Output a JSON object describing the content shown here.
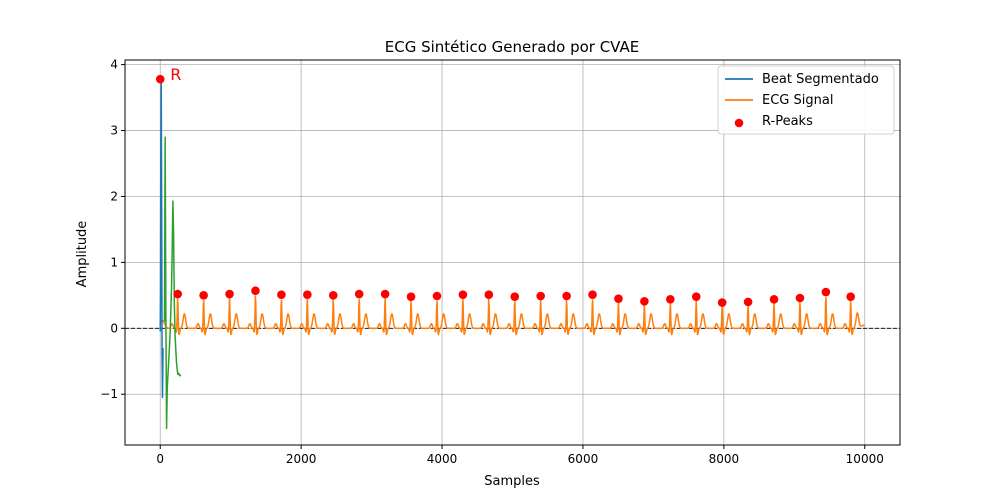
{
  "chart_data": {
    "type": "line",
    "title": "ECG Sintético Generado por CVAE",
    "xlabel": "Samples",
    "ylabel": "Amplitude",
    "xlim": [
      -500,
      10500
    ],
    "ylim": [
      -1.77,
      4.07
    ],
    "xticks": [
      0,
      2000,
      4000,
      6000,
      8000,
      10000
    ],
    "xtick_labels": [
      "0",
      "2000",
      "4000",
      "6000",
      "8000",
      "10000"
    ],
    "yticks": [
      -1,
      0,
      1,
      2,
      3,
      4
    ],
    "ytick_labels": [
      "−1",
      "0",
      "1",
      "2",
      "3",
      "4"
    ],
    "grid": true,
    "zero_line": true,
    "legend_position": "upper right",
    "legend": [
      "Beat Segmentado",
      "ECG Signal",
      "R-Peaks"
    ],
    "annotation": {
      "text": "R",
      "x": 0,
      "y": 3.78,
      "color": "#ff0000"
    },
    "colors": {
      "beat": "#1f77b4",
      "ecg": "#ff7f0e",
      "green": "#2ca02c",
      "peaks": "#ff0000"
    },
    "series": [
      {
        "name": "Beat Segmentado",
        "x": [
          0,
          4,
          8,
          14,
          20,
          26,
          32,
          40
        ],
        "y": [
          -0.05,
          0.6,
          2.6,
          3.78,
          2.0,
          -0.4,
          -1.05,
          -0.3
        ]
      },
      {
        "name": "ECG Signal",
        "beat_period": 368,
        "start": 0,
        "end": 10000,
        "amplitude_note": "periodic beats of ~0.5 amplitude"
      },
      {
        "x": [
          60,
          70,
          80,
          90,
          100,
          120,
          140,
          160,
          170,
          180,
          190,
          200,
          210,
          220,
          230,
          240,
          250,
          260,
          270,
          280,
          290
        ],
        "y": [
          0.1,
          2.9,
          0.2,
          -1.52,
          -0.9,
          -0.5,
          -0.1,
          0.6,
          1.2,
          1.93,
          1.4,
          0.4,
          -0.1,
          -0.3,
          -0.5,
          -0.62,
          -0.7,
          -0.68,
          -0.7,
          -0.72,
          -0.7
        ]
      },
      {
        "name": "R-Peaks",
        "x": [
          0,
          248,
          616,
          984,
          1352,
          1720,
          2088,
          2456,
          2824,
          3192,
          3560,
          3928,
          4296,
          4664,
          5032,
          5400,
          5768,
          6136,
          6504,
          6872,
          7240,
          7608,
          7976,
          8344,
          8712,
          9080,
          9448,
          9800
        ],
        "y": [
          3.78,
          0.52,
          0.5,
          0.52,
          0.57,
          0.51,
          0.51,
          0.5,
          0.52,
          0.52,
          0.48,
          0.49,
          0.51,
          0.51,
          0.48,
          0.49,
          0.49,
          0.51,
          0.45,
          0.41,
          0.44,
          0.48,
          0.39,
          0.4,
          0.44,
          0.46,
          0.55,
          0.48
        ]
      }
    ]
  }
}
